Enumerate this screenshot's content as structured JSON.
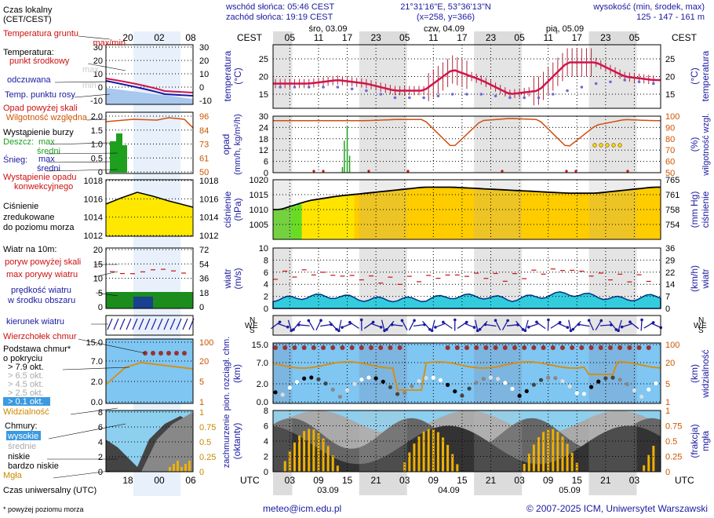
{
  "header": {
    "sunrise": "wschód słońca: 05:46 CEST",
    "sunset": "zachód słońca: 19:19 CEST",
    "coords": "21°31'16\"E, 53°36'13\"N",
    "grid": "(x=258, y=366)",
    "alt_title": "wysokość (min, środek, max)",
    "alt_values": "125 - 147 - 161 m"
  },
  "time": {
    "tz_top": "CEST",
    "tz_bottom": "UTC",
    "days_top": [
      "śro, 03.09",
      "czw, 04.09",
      "pią, 05.09"
    ],
    "days_bottom": [
      "03.09",
      "04.09",
      "05.09"
    ],
    "hours_top": [
      "05",
      "11",
      "17",
      "23",
      "05",
      "11",
      "17",
      "23",
      "05",
      "11",
      "17",
      "23",
      "05"
    ],
    "hours_bottom": [
      "03",
      "09",
      "15",
      "21",
      "03",
      "09",
      "15",
      "21",
      "03",
      "09",
      "15",
      "21",
      "03"
    ]
  },
  "legend": {
    "local_time": "Czas lokalny",
    "local_time2": "(CET/CEST)",
    "local_ticks": [
      "20",
      "02",
      "08"
    ],
    "utc_label": "Czas uniwersalny (UTC)",
    "utc_ticks": [
      "18",
      "00",
      "06"
    ],
    "temp_ground": "Temperatura gruntu",
    "temp_ground2": "max/min",
    "temp": "Temperatura:",
    "temp_mid": "punkt środkowy",
    "temp_max": "max",
    "temp_min": "min",
    "feels": "odczuwana",
    "dew": "Temp. punktu rosy",
    "temp_ticks": [
      "30",
      "20",
      "10",
      "0",
      "-10"
    ],
    "precip_over": "Opad powyżej skali",
    "humidity": "Wilgotność względna",
    "storm": "Wystąpienie burzy",
    "rain": "Deszcz:",
    "snow": "Śnieg:",
    "max": "max",
    "avg": "średni",
    "precip_occur": "Wystąpienie opadu",
    "precip_occur2": "konwekcyjnego",
    "precip_ticks": [
      "2.0",
      "1.5",
      "1.0",
      "0.5",
      "0"
    ],
    "hum_ticks": [
      "96",
      "84",
      "73",
      "61",
      "50"
    ],
    "pressure1": "Ciśnienie",
    "pressure2": "zredukowane",
    "pressure3": "do poziomu morza",
    "press_ticks": [
      "1018",
      "1016",
      "1014",
      "1012"
    ],
    "wind_title": "Wiatr na 10m:",
    "gust_over": "poryw powyżej skali",
    "gust_max": "max porywy wiatru",
    "wind_speed1": "prędkość wiatru",
    "wind_speed2": "w środku obszaru",
    "wind_ticks": [
      "20",
      "15",
      "10",
      "5",
      "0"
    ],
    "wind_kmh": [
      "72",
      "54",
      "36",
      "18",
      "0"
    ],
    "wind_dir": "kierunek wiatru",
    "cloud_top": "Wierzchołek chmur",
    "cloud_base1": "Podstawa chmur*",
    "cloud_base2": "o pokryciu",
    "okt": [
      "> 7.9 okt.",
      "> 6.5 okt.",
      "> 4.5 okt.",
      "> 2.5 okt.",
      "> 0.1 okt."
    ],
    "visibility": "Widzialność",
    "cloud_ticks": [
      "15.0",
      "7.0",
      "2.0",
      "0.0"
    ],
    "vis_ticks": [
      "100",
      "20",
      "5",
      "1"
    ],
    "clouds": "Chmury:",
    "high": "wysokie",
    "mid": "średnie",
    "low": "niskie",
    "vlow": "bardzo niskie",
    "fog": "Mgła",
    "okt_ticks": [
      "8",
      "6",
      "4",
      "2",
      "0"
    ],
    "fog_ticks": [
      "1",
      "0.75",
      "0.5",
      "0.25",
      "0"
    ],
    "footnote": "* powyżej poziomu morza"
  },
  "panels": {
    "temp": {
      "left": "temperatura",
      "left2": "(°C)",
      "right": "(°C)",
      "right2": "temperatura",
      "ticks": [
        "25",
        "20",
        "15"
      ]
    },
    "precip": {
      "left": "opad",
      "left2": "(mm/h, kg/m²/h)",
      "right": "(%)",
      "right2": "wilgotność wzgl.",
      "ticks": [
        "30",
        "24",
        "18",
        "12",
        "6",
        "0"
      ],
      "ticks_r": [
        "100",
        "90",
        "80",
        "70",
        "60",
        "50"
      ]
    },
    "press": {
      "left": "ciśnienie",
      "left2": "(hPa)",
      "right": "(mm Hg)",
      "right2": "ciśnienie",
      "ticks": [
        "1020",
        "1015",
        "1010",
        "1005"
      ],
      "ticks_r": [
        "765",
        "761",
        "758",
        "754"
      ]
    },
    "wind": {
      "left": "wiatr",
      "left2": "(m/s)",
      "right": "(km/h)",
      "right2": "wiatr",
      "ticks": [
        "10",
        "8",
        "6",
        "4",
        "2",
        "0"
      ],
      "ticks_r": [
        "36",
        "29",
        "22",
        "14",
        "7",
        "0"
      ]
    },
    "dir": {
      "compass": "N",
      "compass_w": "W",
      "compass_e": "E",
      "compass_s": "S"
    },
    "cloud": {
      "left": "pion. rozciągł. chm.",
      "left2": "(km)",
      "right": "(km)",
      "right2": "widzialność",
      "ticks": [
        "15.0",
        "7.0",
        "2.0",
        "0.0"
      ],
      "ticks_r": [
        "100",
        "20",
        "5",
        "1"
      ]
    },
    "cover": {
      "left": "zachmurzenie",
      "left2": "(oktanty)",
      "right": "(frakcja)",
      "right2": "mgła",
      "ticks": [
        "8",
        "6",
        "4",
        "2",
        "0"
      ],
      "ticks_r": [
        "1",
        "0.75",
        "0.5",
        "0.25",
        "0"
      ]
    }
  },
  "footer": {
    "email": "meteo@icm.edu.pl",
    "copyright": "© 2007-2025 ICM, Uniwersytet Warszawski"
  },
  "chart_data": [
    {
      "type": "line",
      "title": "",
      "ylabel": "temperatura (°C)",
      "x_hours_utc": [
        0,
        6,
        12,
        18,
        24,
        30,
        36,
        42,
        48,
        54,
        60,
        66,
        72,
        78
      ],
      "series": [
        {
          "name": "punkt środkowy",
          "values": [
            18,
            18,
            19,
            18,
            16,
            16,
            22,
            19,
            15,
            16,
            24,
            24,
            20,
            19
          ]
        },
        {
          "name": "odczuwana",
          "values": [
            18,
            17,
            18,
            17,
            15,
            15,
            20,
            18,
            15,
            15,
            21,
            22,
            19,
            19
          ]
        },
        {
          "name": "Temp. punktu rosy",
          "values": [
            17,
            17,
            17,
            16,
            14,
            14,
            15,
            15,
            14,
            14,
            16,
            18,
            19,
            18
          ]
        }
      ],
      "ylim": [
        11,
        29
      ]
    },
    {
      "type": "line",
      "title": "",
      "ylabel": "wilgotność wzgl. (%)",
      "x_hours_utc": [
        0,
        6,
        12,
        18,
        24,
        30,
        36,
        42,
        48,
        54,
        60,
        66,
        72,
        78
      ],
      "series": [
        {
          "name": "Wilgotność względna",
          "values": [
            96,
            96,
            96,
            96,
            97,
            97,
            72,
            96,
            98,
            97,
            72,
            92,
            97,
            96
          ]
        }
      ],
      "ylim": [
        50,
        100
      ]
    },
    {
      "type": "area",
      "title": "",
      "ylabel": "ciśnienie (hPa)",
      "x_hours_utc": [
        0,
        6,
        12,
        18,
        24,
        30,
        36,
        42,
        48,
        54,
        60,
        66,
        72,
        78
      ],
      "series": [
        {
          "name": "Ciśnienie",
          "values": [
            1010,
            1013,
            1014.5,
            1015.5,
            1016.5,
            1017.5,
            1017.5,
            1017,
            1016.5,
            1016,
            1015.5,
            1015.5,
            1016.5,
            1017.5
          ]
        }
      ],
      "ylim": [
        1000,
        1020
      ]
    },
    {
      "type": "area",
      "title": "",
      "ylabel": "wiatr (m/s)",
      "x_hours_utc": [
        0,
        6,
        12,
        18,
        24,
        30,
        36,
        42,
        48,
        54,
        60,
        66,
        72,
        78
      ],
      "series": [
        {
          "name": "prędkość wiatru",
          "values": [
            1.5,
            2,
            2,
            1.5,
            1.5,
            1.5,
            2,
            2,
            1.5,
            2,
            2.5,
            2,
            1.5,
            2
          ]
        },
        {
          "name": "max porywy wiatru",
          "values": [
            5.5,
            6,
            5.5,
            5,
            4.5,
            5,
            5.5,
            5.5,
            5,
            6,
            6.5,
            5.5,
            5,
            5
          ]
        }
      ],
      "ylim": [
        0,
        10
      ]
    }
  ]
}
